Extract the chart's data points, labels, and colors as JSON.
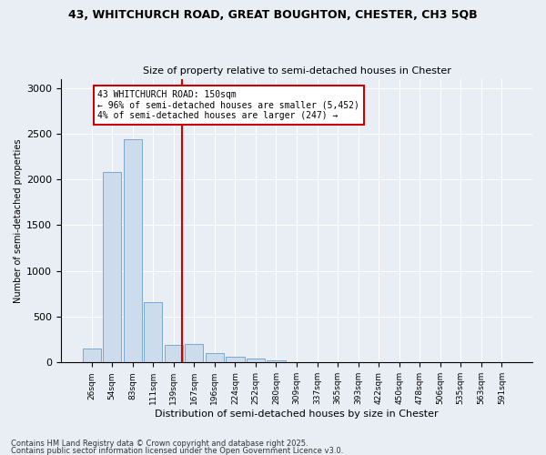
{
  "title_line1": "43, WHITCHURCH ROAD, GREAT BOUGHTON, CHESTER, CH3 5QB",
  "title_line2": "Size of property relative to semi-detached houses in Chester",
  "xlabel": "Distribution of semi-detached houses by size in Chester",
  "ylabel": "Number of semi-detached properties",
  "bin_labels": [
    "26sqm",
    "54sqm",
    "83sqm",
    "111sqm",
    "139sqm",
    "167sqm",
    "196sqm",
    "224sqm",
    "252sqm",
    "280sqm",
    "309sqm",
    "337sqm",
    "365sqm",
    "393sqm",
    "422sqm",
    "450sqm",
    "478sqm",
    "506sqm",
    "535sqm",
    "563sqm",
    "591sqm"
  ],
  "bar_heights": [
    155,
    2080,
    2440,
    660,
    195,
    200,
    100,
    65,
    40,
    25,
    0,
    0,
    0,
    0,
    0,
    0,
    0,
    0,
    0,
    0,
    0
  ],
  "bar_color": "#ccdcec",
  "bar_edge_color": "#7aa8cc",
  "annotation_text_line1": "43 WHITCHURCH ROAD: 150sqm",
  "annotation_text_line2": "← 96% of semi-detached houses are smaller (5,452)",
  "annotation_text_line3": "4% of semi-detached houses are larger (247) →",
  "vline_color": "#cc0000",
  "annotation_box_color": "#ffffff",
  "annotation_box_edge": "#cc0000",
  "footnote_line1": "Contains HM Land Registry data © Crown copyright and database right 2025.",
  "footnote_line2": "Contains public sector information licensed under the Open Government Licence v3.0.",
  "ylim": [
    0,
    3100
  ],
  "background_color": "#e8eef4",
  "plot_background": "#e8eef4",
  "title_fontsize": 9,
  "subtitle_fontsize": 8,
  "ylabel_fontsize": 7,
  "xlabel_fontsize": 8,
  "tick_fontsize": 6.5,
  "annotation_fontsize": 7,
  "footnote_fontsize": 6
}
